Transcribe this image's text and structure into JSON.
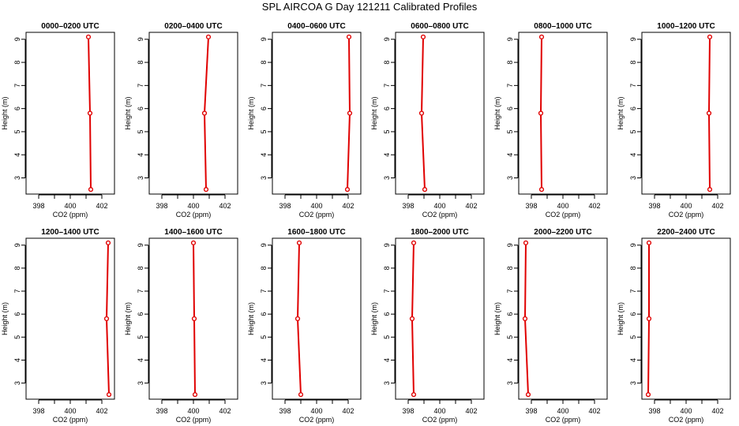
{
  "figure": {
    "title": "SPL AIRCOA G  Day 121211  Calibrated Profiles"
  },
  "colors": {
    "line": "#e00000",
    "axis": "#000000"
  },
  "chart_data": [
    {
      "type": "line",
      "title": "0000–0200 UTC",
      "xlabel": "CO2 (ppm)",
      "ylabel": "Height (m)",
      "xlim": [
        397.2,
        402.8
      ],
      "ylim": [
        2.3,
        9.3
      ],
      "xticks": [
        398,
        400,
        402
      ],
      "yticks": [
        3,
        4,
        5,
        6,
        7,
        8,
        9
      ],
      "series": [
        {
          "x": [
            401.15,
            401.25,
            401.3
          ],
          "y": [
            9.1,
            5.8,
            2.5
          ]
        }
      ]
    },
    {
      "type": "line",
      "title": "0200–0400 UTC",
      "xlabel": "CO2 (ppm)",
      "ylabel": "Height (m)",
      "xlim": [
        397.2,
        402.8
      ],
      "ylim": [
        2.3,
        9.3
      ],
      "xticks": [
        398,
        400,
        402
      ],
      "yticks": [
        3,
        4,
        5,
        6,
        7,
        8,
        9
      ],
      "series": [
        {
          "x": [
            400.95,
            400.7,
            400.8
          ],
          "y": [
            9.1,
            5.8,
            2.5
          ]
        }
      ]
    },
    {
      "type": "line",
      "title": "0400–0600 UTC",
      "xlabel": "CO2 (ppm)",
      "ylabel": "Height (m)",
      "xlim": [
        397.2,
        402.8
      ],
      "ylim": [
        2.3,
        9.3
      ],
      "xticks": [
        398,
        400,
        402
      ],
      "yticks": [
        3,
        4,
        5,
        6,
        7,
        8,
        9
      ],
      "series": [
        {
          "x": [
            402.05,
            402.1,
            401.95
          ],
          "y": [
            9.1,
            5.8,
            2.5
          ]
        }
      ]
    },
    {
      "type": "line",
      "title": "0600–0800 UTC",
      "xlabel": "CO2 (ppm)",
      "ylabel": "Height (m)",
      "xlim": [
        397.2,
        402.8
      ],
      "ylim": [
        2.3,
        9.3
      ],
      "xticks": [
        398,
        400,
        402
      ],
      "yticks": [
        3,
        4,
        5,
        6,
        7,
        8,
        9
      ],
      "series": [
        {
          "x": [
            398.95,
            398.85,
            399.05
          ],
          "y": [
            9.1,
            5.8,
            2.5
          ]
        }
      ]
    },
    {
      "type": "line",
      "title": "0800–1000 UTC",
      "xlabel": "CO2 (ppm)",
      "ylabel": "Height (m)",
      "xlim": [
        397.2,
        402.8
      ],
      "ylim": [
        2.3,
        9.3
      ],
      "xticks": [
        398,
        400,
        402
      ],
      "yticks": [
        3,
        4,
        5,
        6,
        7,
        8,
        9
      ],
      "series": [
        {
          "x": [
            398.65,
            398.6,
            398.65
          ],
          "y": [
            9.1,
            5.8,
            2.5
          ]
        }
      ]
    },
    {
      "type": "line",
      "title": "1000–1200 UTC",
      "xlabel": "CO2 (ppm)",
      "ylabel": "Height (m)",
      "xlim": [
        397.2,
        402.8
      ],
      "ylim": [
        2.3,
        9.3
      ],
      "xticks": [
        398,
        400,
        402
      ],
      "yticks": [
        3,
        4,
        5,
        6,
        7,
        8,
        9
      ],
      "series": [
        {
          "x": [
            401.5,
            401.45,
            401.5
          ],
          "y": [
            9.1,
            5.8,
            2.5
          ]
        }
      ]
    },
    {
      "type": "line",
      "title": "1200–1400 UTC",
      "xlabel": "CO2 (ppm)",
      "ylabel": "Height (m)",
      "xlim": [
        397.2,
        402.8
      ],
      "ylim": [
        2.3,
        9.3
      ],
      "xticks": [
        398,
        400,
        402
      ],
      "yticks": [
        3,
        4,
        5,
        6,
        7,
        8,
        9
      ],
      "series": [
        {
          "x": [
            402.4,
            402.3,
            402.45
          ],
          "y": [
            9.1,
            5.8,
            2.5
          ]
        }
      ]
    },
    {
      "type": "line",
      "title": "1400–1600 UTC",
      "xlabel": "CO2 (ppm)",
      "ylabel": "Height (m)",
      "xlim": [
        397.2,
        402.8
      ],
      "ylim": [
        2.3,
        9.3
      ],
      "xticks": [
        398,
        400,
        402
      ],
      "yticks": [
        3,
        4,
        5,
        6,
        7,
        8,
        9
      ],
      "series": [
        {
          "x": [
            400.0,
            400.05,
            400.1
          ],
          "y": [
            9.1,
            5.8,
            2.5
          ]
        }
      ]
    },
    {
      "type": "line",
      "title": "1600–1800 UTC",
      "xlabel": "CO2 (ppm)",
      "ylabel": "Height (m)",
      "xlim": [
        397.2,
        402.8
      ],
      "ylim": [
        2.3,
        9.3
      ],
      "xticks": [
        398,
        400,
        402
      ],
      "yticks": [
        3,
        4,
        5,
        6,
        7,
        8,
        9
      ],
      "series": [
        {
          "x": [
            398.9,
            398.8,
            399.0
          ],
          "y": [
            9.1,
            5.8,
            2.5
          ]
        }
      ]
    },
    {
      "type": "line",
      "title": "1800–2000 UTC",
      "xlabel": "CO2 (ppm)",
      "ylabel": "Height (m)",
      "xlim": [
        397.2,
        402.8
      ],
      "ylim": [
        2.3,
        9.3
      ],
      "xticks": [
        398,
        400,
        402
      ],
      "yticks": [
        3,
        4,
        5,
        6,
        7,
        8,
        9
      ],
      "series": [
        {
          "x": [
            398.35,
            398.25,
            398.35
          ],
          "y": [
            9.1,
            5.8,
            2.5
          ]
        }
      ]
    },
    {
      "type": "line",
      "title": "2000–2200 UTC",
      "xlabel": "CO2 (ppm)",
      "ylabel": "Height (m)",
      "xlim": [
        397.2,
        402.8
      ],
      "ylim": [
        2.3,
        9.3
      ],
      "xticks": [
        398,
        400,
        402
      ],
      "yticks": [
        3,
        4,
        5,
        6,
        7,
        8,
        9
      ],
      "series": [
        {
          "x": [
            397.65,
            397.6,
            397.8
          ],
          "y": [
            9.1,
            5.8,
            2.5
          ]
        }
      ]
    },
    {
      "type": "line",
      "title": "2200–2400 UTC",
      "xlabel": "CO2 (ppm)",
      "ylabel": "Height (m)",
      "xlim": [
        397.2,
        402.8
      ],
      "ylim": [
        2.3,
        9.3
      ],
      "xticks": [
        398,
        400,
        402
      ],
      "yticks": [
        3,
        4,
        5,
        6,
        7,
        8,
        9
      ],
      "series": [
        {
          "x": [
            397.65,
            397.65,
            397.6
          ],
          "y": [
            9.1,
            5.8,
            2.5
          ]
        }
      ]
    }
  ]
}
